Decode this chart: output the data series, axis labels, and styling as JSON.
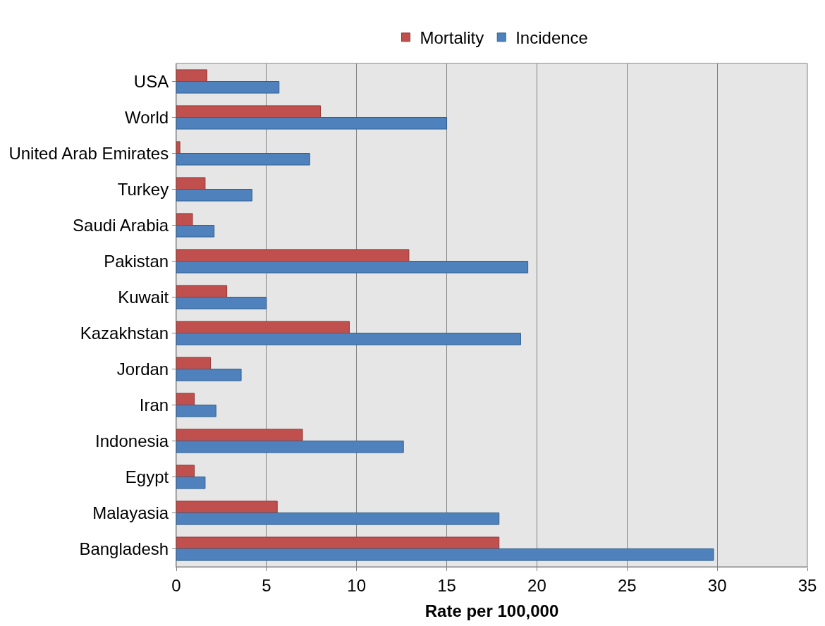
{
  "chart_data": {
    "type": "bar",
    "orientation": "horizontal",
    "xlabel": "Rate per 100,000",
    "categories": [
      "USA",
      "World",
      "United Arab Emirates",
      "Turkey",
      "Saudi Arabia",
      "Pakistan",
      "Kuwait",
      "Kazakhstan",
      "Jordan",
      "Iran",
      "Indonesia",
      "Egypt",
      "Malayasia",
      "Bangladesh"
    ],
    "series": [
      {
        "name": "Mortality",
        "color": "#c0504d",
        "values": [
          1.7,
          8.0,
          0.2,
          1.6,
          0.9,
          12.9,
          2.8,
          9.6,
          1.9,
          1.0,
          7.0,
          1.0,
          5.6,
          17.9
        ]
      },
      {
        "name": "Incidence",
        "color": "#4f81bd",
        "values": [
          5.7,
          15.0,
          7.4,
          4.2,
          2.1,
          19.5,
          5.0,
          19.1,
          3.6,
          2.2,
          12.6,
          1.6,
          17.9,
          29.8
        ]
      }
    ],
    "xlim": [
      0,
      35
    ],
    "xticks": [
      0,
      5,
      10,
      15,
      20,
      25,
      30,
      35
    ],
    "grid": "x",
    "legend": "top"
  }
}
